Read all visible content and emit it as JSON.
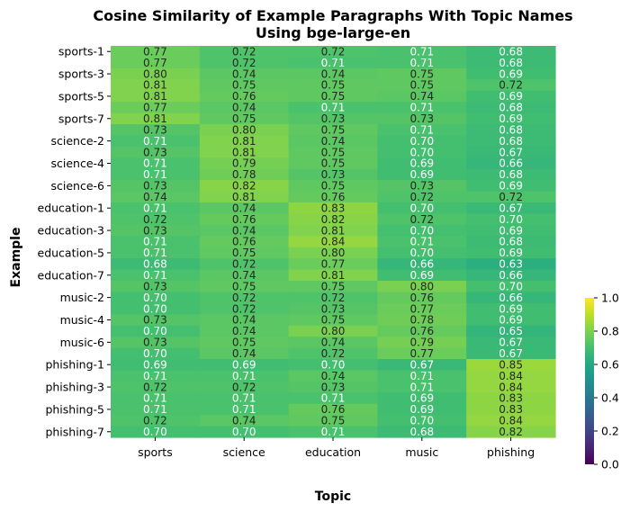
{
  "chart_data": {
    "type": "heatmap",
    "title_line1": "Cosine Similarity of Example Paragraphs With Topic Names",
    "title_line2": "Using bge-large-en",
    "xlabel": "Topic",
    "ylabel": "Example",
    "columns": [
      "sports",
      "science",
      "education",
      "music",
      "phishing"
    ],
    "ytick_labels": [
      "sports-1",
      "sports-3",
      "sports-5",
      "sports-7",
      "science-2",
      "science-4",
      "science-6",
      "education-1",
      "education-3",
      "education-5",
      "education-7",
      "music-2",
      "music-4",
      "music-6",
      "phishing-1",
      "phishing-3",
      "phishing-5",
      "phishing-7"
    ],
    "values": [
      [
        0.77,
        0.72,
        0.72,
        0.71,
        0.68
      ],
      [
        0.77,
        0.72,
        0.71,
        0.71,
        0.68
      ],
      [
        0.8,
        0.74,
        0.74,
        0.75,
        0.69
      ],
      [
        0.81,
        0.75,
        0.75,
        0.75,
        0.72
      ],
      [
        0.81,
        0.76,
        0.75,
        0.74,
        0.69
      ],
      [
        0.77,
        0.74,
        0.71,
        0.71,
        0.68
      ],
      [
        0.81,
        0.75,
        0.73,
        0.73,
        0.69
      ],
      [
        0.73,
        0.8,
        0.75,
        0.71,
        0.68
      ],
      [
        0.71,
        0.81,
        0.74,
        0.7,
        0.68
      ],
      [
        0.73,
        0.81,
        0.75,
        0.7,
        0.67
      ],
      [
        0.71,
        0.79,
        0.75,
        0.69,
        0.66
      ],
      [
        0.71,
        0.78,
        0.73,
        0.69,
        0.68
      ],
      [
        0.73,
        0.82,
        0.75,
        0.73,
        0.69
      ],
      [
        0.74,
        0.81,
        0.76,
        0.72,
        0.72
      ],
      [
        0.71,
        0.74,
        0.83,
        0.7,
        0.67
      ],
      [
        0.72,
        0.76,
        0.82,
        0.72,
        0.7
      ],
      [
        0.73,
        0.74,
        0.81,
        0.7,
        0.69
      ],
      [
        0.71,
        0.76,
        0.84,
        0.71,
        0.68
      ],
      [
        0.71,
        0.75,
        0.8,
        0.7,
        0.69
      ],
      [
        0.68,
        0.72,
        0.77,
        0.66,
        0.63
      ],
      [
        0.71,
        0.74,
        0.81,
        0.69,
        0.66
      ],
      [
        0.73,
        0.75,
        0.75,
        0.8,
        0.7
      ],
      [
        0.7,
        0.72,
        0.72,
        0.76,
        0.66
      ],
      [
        0.7,
        0.72,
        0.73,
        0.77,
        0.69
      ],
      [
        0.73,
        0.74,
        0.75,
        0.78,
        0.69
      ],
      [
        0.7,
        0.74,
        0.8,
        0.76,
        0.65
      ],
      [
        0.73,
        0.75,
        0.74,
        0.79,
        0.67
      ],
      [
        0.7,
        0.74,
        0.72,
        0.77,
        0.67
      ],
      [
        0.69,
        0.69,
        0.7,
        0.67,
        0.85
      ],
      [
        0.71,
        0.71,
        0.74,
        0.71,
        0.84
      ],
      [
        0.72,
        0.72,
        0.73,
        0.71,
        0.84
      ],
      [
        0.71,
        0.71,
        0.71,
        0.69,
        0.83
      ],
      [
        0.71,
        0.71,
        0.76,
        0.69,
        0.83
      ],
      [
        0.72,
        0.74,
        0.75,
        0.7,
        0.84
      ],
      [
        0.7,
        0.7,
        0.71,
        0.68,
        0.82
      ]
    ],
    "colorbar": {
      "colormap": "viridis",
      "range": [
        0.0,
        1.0
      ],
      "ticks": [
        "0.0",
        "0.2",
        "0.4",
        "0.6",
        "0.8",
        "1.0"
      ]
    }
  }
}
